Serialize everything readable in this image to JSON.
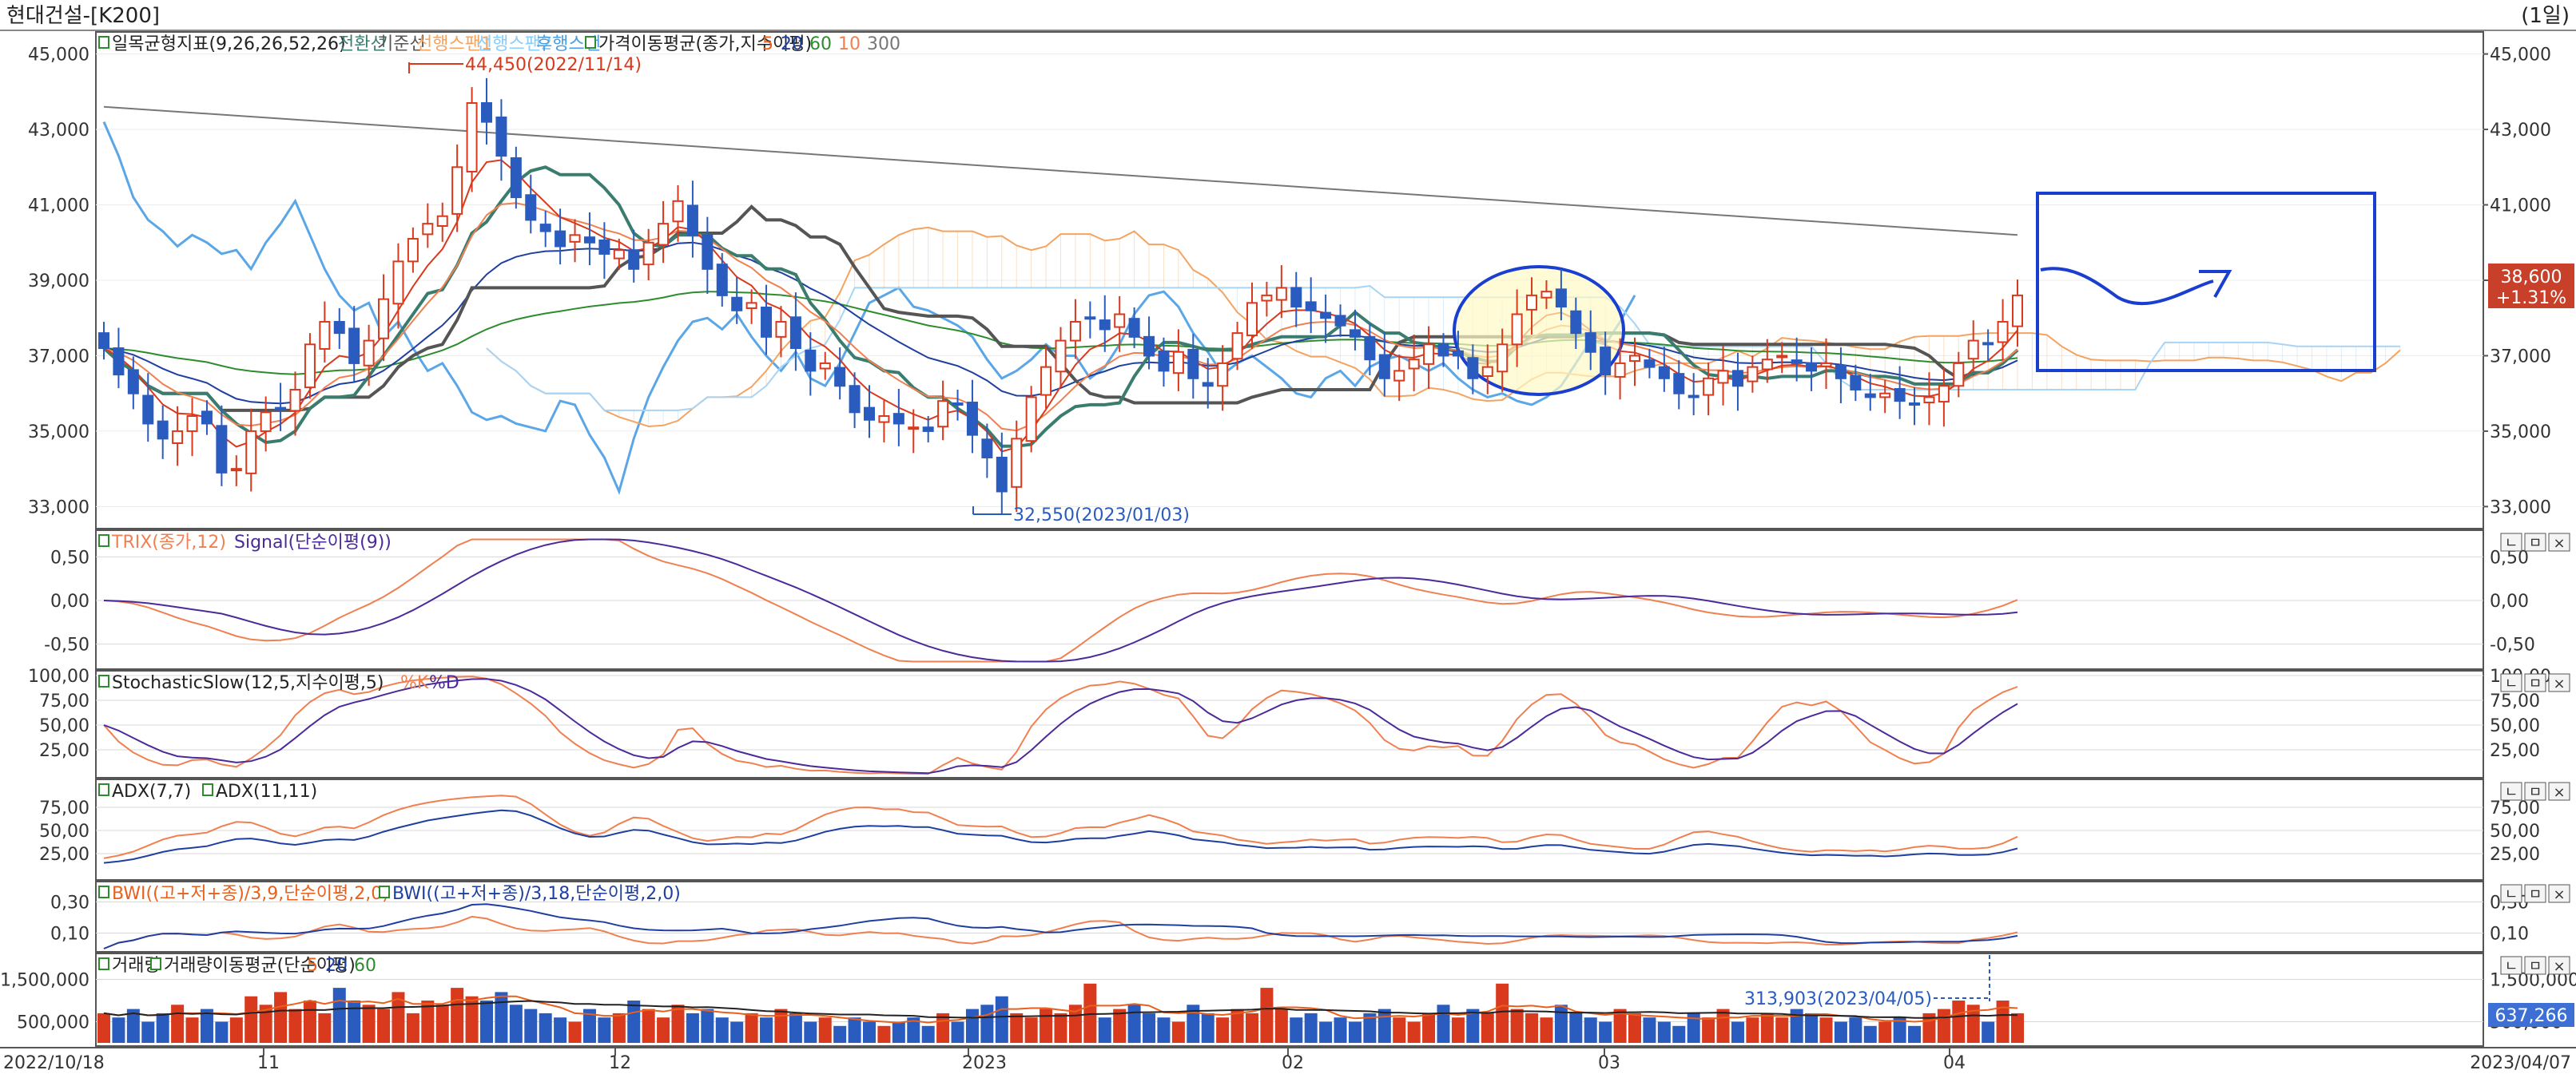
{
  "window": {
    "title": "현대건설-[K200]",
    "period": "(1일)"
  },
  "price_pane": {
    "legend": [
      {
        "text": "일목균형지표(9,26,26,52,26)",
        "color": "#222222",
        "checkbox": true
      },
      {
        "text": "전환선",
        "color": "#3a7d6e"
      },
      {
        "text": "기준선",
        "color": "#555555"
      },
      {
        "text": "선행스팬1",
        "color": "#f4a460"
      },
      {
        "text": "선행스팬2",
        "color": "#87cefa"
      },
      {
        "text": "후행스팬",
        "color": "#4a9ee0"
      },
      {
        "text": "가격이동평균(종가,지수이평)",
        "color": "#222222",
        "checkbox": true
      },
      {
        "text": "5",
        "color": "#e8601c"
      },
      {
        "text": "20",
        "color": "#1f3fa0"
      },
      {
        "text": "60",
        "color": "#2e8b2e"
      },
      {
        "text": "10",
        "color": "#f08050"
      },
      {
        "text": "300",
        "color": "#777777"
      }
    ],
    "y_ticks": [
      "45,000",
      "43,000",
      "41,000",
      "39,000",
      "37,000",
      "35,000",
      "33,000"
    ],
    "annotations": {
      "high": "44,450(2022/11/14)",
      "low": "32,550(2023/01/03)"
    },
    "last_price": "38,600",
    "last_change": "+1.31%"
  },
  "trix_pane": {
    "legend": [
      {
        "text": "TRIX(종가,12)",
        "color": "#f08050",
        "checkbox": true
      },
      {
        "text": "Signal(단순이평(9))",
        "color": "#4b2a9a"
      }
    ],
    "y_ticks": [
      "0,50",
      "0,00",
      "-0,50"
    ]
  },
  "stoch_pane": {
    "legend": [
      {
        "text": "StochasticSlow(12,5,지수이평,5)",
        "color": "#222222",
        "checkbox": true
      },
      {
        "text": "%K",
        "color": "#f08050"
      },
      {
        "text": "%D",
        "color": "#4b2a9a"
      }
    ],
    "y_ticks": [
      "100,00",
      "75,00",
      "50,00",
      "25,00"
    ]
  },
  "adx_pane": {
    "legend": [
      {
        "text": "ADX(7,7)",
        "color": "#222222",
        "checkbox": true
      },
      {
        "text": "ADX(11,11)",
        "color": "#222222",
        "checkbox": true
      }
    ],
    "y_ticks": [
      "75,00",
      "50,00",
      "25,00"
    ]
  },
  "bwi_pane": {
    "legend": [
      {
        "text": "BWI((고+저+종)/3,9,단순이평,2,0)",
        "color": "#e8601c",
        "checkbox": true
      },
      {
        "text": "BWI((고+저+종)/3,18,단순이평,2,0)",
        "color": "#1f3fa0",
        "checkbox": true
      }
    ],
    "y_ticks": [
      "0,30",
      "0,10"
    ]
  },
  "volume_pane": {
    "legend": [
      {
        "text": "거래량",
        "color": "#222222",
        "checkbox": true
      },
      {
        "text": "거래량이동평균(단순이평)",
        "color": "#222222",
        "checkbox": true
      },
      {
        "text": "5",
        "color": "#e8601c"
      },
      {
        "text": "20",
        "color": "#1f3fa0"
      },
      {
        "text": "60",
        "color": "#2e8b2e"
      }
    ],
    "y_ticks": [
      "1,500,000",
      "500,000"
    ],
    "annotation": "313,903(2023/04/05)",
    "last_value": "637,266"
  },
  "x_axis": {
    "start": "2022/10/18",
    "end": "2023/04/07",
    "month_labels": [
      "11",
      "12",
      "2023",
      "02",
      "03",
      "04"
    ]
  },
  "pane_buttons": [
    "ㄴ",
    "ㅁ",
    "×"
  ],
  "colors": {
    "up": "#d9391c",
    "down": "#2a5bbf",
    "highlight_circle": "#1a3fd0",
    "highlight_fill": "#fff9c4",
    "forecast_box": "#1a3fd0"
  },
  "chart_data": {
    "type": "candlestick",
    "x_range": [
      "2022/10/18",
      "2023/04/07"
    ],
    "ylim": [
      32500,
      45500
    ],
    "marked_high": {
      "date": "2022/11/14",
      "value": 44450
    },
    "marked_low": {
      "date": "2023/01/03",
      "value": 32550
    },
    "last_close": 38600,
    "close_approx": [
      37200,
      36500,
      36000,
      35200,
      34800,
      35000,
      35400,
      35200,
      33900,
      34000,
      35000,
      35500,
      35600,
      36100,
      37300,
      37900,
      37600,
      36800,
      37400,
      38500,
      39500,
      40100,
      40500,
      40700,
      42000,
      43700,
      43200,
      42300,
      41200,
      40600,
      40300,
      39900,
      40200,
      40000,
      39700,
      39800,
      39300,
      40000,
      40500,
      41100,
      40200,
      39300,
      38600,
      38200,
      38400,
      37500,
      37900,
      37200,
      36600,
      36800,
      36200,
      35500,
      35300,
      35400,
      35200,
      35100,
      35000,
      35800,
      35700,
      34900,
      34300,
      33400,
      34800,
      35900,
      36700,
      37400,
      37900,
      38000,
      37700,
      38100,
      37500,
      37000,
      36600,
      37100,
      36400,
      36200,
      36800,
      37600,
      38400,
      38600,
      38800,
      38300,
      38200,
      38000,
      37800,
      37500,
      36900,
      36400,
      36600,
      36900,
      37300,
      37000,
      37000,
      36400,
      36700,
      37300,
      38100,
      38600,
      38700,
      38300,
      37600,
      37100,
      36500,
      36800,
      37000,
      36700,
      36400,
      36000,
      35900,
      36400,
      36600,
      36200,
      36700,
      36900,
      37000,
      36800,
      36600,
      36800,
      36400,
      36100,
      35900,
      36000,
      35800,
      35700,
      35900,
      36200,
      36800,
      37400,
      37300,
      37900,
      38600
    ],
    "volume_approx": [
      700000,
      600000,
      800000,
      500000,
      700000,
      900000,
      600000,
      800000,
      500000,
      600000,
      1100000,
      900000,
      1200000,
      800000,
      1000000,
      700000,
      1300000,
      1000000,
      900000,
      800000,
      1200000,
      700000,
      1000000,
      900000,
      1300000,
      1100000,
      1000000,
      1200000,
      900000,
      800000,
      700000,
      600000,
      500000,
      800000,
      600000,
      700000,
      1000000,
      800000,
      600000,
      900000,
      700000,
      800000,
      600000,
      500000,
      700000,
      600000,
      800000,
      700000,
      500000,
      600000,
      400000,
      600000,
      500000,
      400000,
      500000,
      600000,
      400000,
      700000,
      500000,
      800000,
      900000,
      1100000,
      700000,
      600000,
      800000,
      700000,
      900000,
      1400000,
      600000,
      800000,
      900000,
      700000,
      600000,
      500000,
      900000,
      700000,
      600000,
      800000,
      700000,
      1300000,
      800000,
      600000,
      700000,
      500000,
      600000,
      500000,
      700000,
      800000,
      600000,
      500000,
      700000,
      900000,
      600000,
      800000,
      700000,
      1400000,
      800000,
      700000,
      600000,
      900000,
      700000,
      600000,
      500000,
      800000,
      700000,
      600000,
      500000,
      400000,
      700000,
      600000,
      800000,
      500000,
      600000,
      700000,
      600000,
      800000,
      700000,
      600000,
      500000,
      600000,
      400000,
      500000,
      600000,
      400000,
      700000,
      800000,
      1000000,
      900000,
      500000,
      1000000,
      700000
    ],
    "trix_range": [
      -0.75,
      0.75
    ],
    "stoch_range": [
      0,
      100
    ],
    "adx_range": [
      0,
      100
    ],
    "bwi_range": [
      0,
      0.4
    ],
    "volume_range": [
      0,
      2000000
    ]
  }
}
